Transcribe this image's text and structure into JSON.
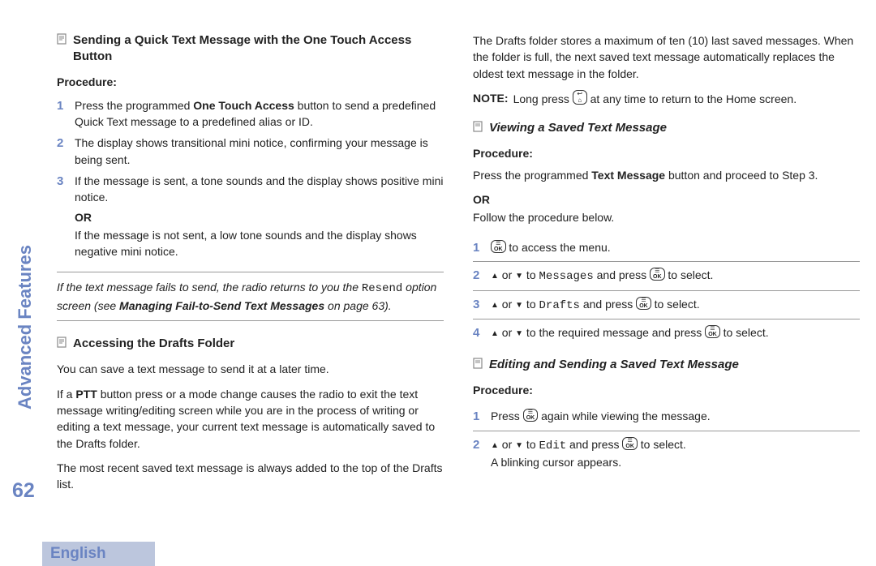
{
  "colors": {
    "accent": "#6a84c2",
    "text": "#222222",
    "rule": "#999999",
    "footer_bg": "#bcc6dd"
  },
  "sidebar": {
    "title": "Advanced Features",
    "page_number": "62"
  },
  "footer": {
    "language": "English"
  },
  "left": {
    "h1": "Sending a Quick Text Message with the One Touch Access Button",
    "procedure_label": "Procedure:",
    "steps": [
      {
        "n": "1",
        "body": "Press the programmed <b>One Touch Access</b> button to send a predefined Quick Text message to a predefined alias or ID."
      },
      {
        "n": "2",
        "body": "The display shows transitional mini notice, confirming your message is being sent."
      },
      {
        "n": "3",
        "body": "If the message is sent, a tone sounds and the display shows positive mini notice.",
        "or": "OR",
        "body2": "If the message is not sent, a low tone sounds and the display shows negative mini notice."
      }
    ],
    "failnote_pre": "If the text message fails to send, the radio returns to you the ",
    "failnote_mono": "Resend",
    "failnote_mid": " option screen (see ",
    "failnote_bold": "Managing Fail-to-Send Text Messages",
    "failnote_post": " on page 63).",
    "h2": "Accessing the Drafts Folder",
    "p1": "You can save a text message to send it at a later time.",
    "p2": "If a <b>PTT</b> button press or a mode change causes the radio to exit the text message writing/editing screen while you are in the process of writing or editing a text message, your current text message is automatically saved to the Drafts folder.",
    "p3": "The most recent saved text message is always added to the top of the Drafts list."
  },
  "right": {
    "intro": "The Drafts folder stores a maximum of ten (10) last saved messages. When the folder is full, the next saved text message automatically replaces the oldest text message in the folder.",
    "note_tag": "NOTE:",
    "note_pre": "Long press ",
    "note_post": " at any time to return to the Home screen.",
    "h1": "Viewing a Saved Text Message",
    "procedure_label": "Procedure:",
    "proc_intro1": "Press the programmed <b>Text Message</b> button and proceed to Step 3.",
    "proc_or": "OR",
    "proc_intro2": "Follow the procedure below.",
    "steps": [
      {
        "n": "1",
        "body": "{OK} to access the menu."
      },
      {
        "n": "2",
        "body": "{UP} or {DN} to {MONO:Messages} and press {OK} to select."
      },
      {
        "n": "3",
        "body": "{UP} or {DN} to {MONO:Drafts} and press {OK} to select."
      },
      {
        "n": "4",
        "body": "{UP} or {DN} to the required message and press {OK} to select."
      }
    ],
    "h2": "Editing and Sending a Saved Text Message",
    "procedure_label2": "Procedure:",
    "steps2": [
      {
        "n": "1",
        "body": "Press {OK} again while viewing the message."
      },
      {
        "n": "2",
        "body": "{UP} or {DN} to {MONO:Edit} and press {OK} to select.",
        "extra": "A blinking cursor appears."
      }
    ]
  }
}
